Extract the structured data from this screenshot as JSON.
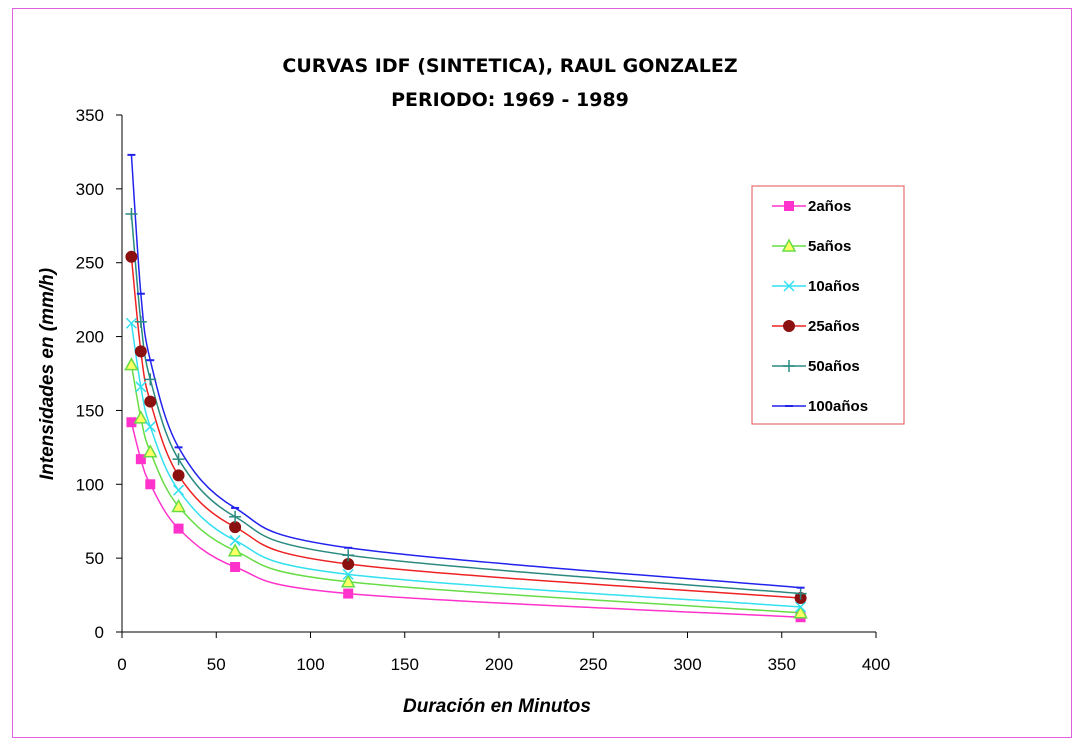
{
  "chart_data": {
    "type": "line",
    "title": "CURVAS IDF (SINTETICA), RAUL GONZALEZ",
    "subtitle": "PERIODO: 1969 - 1989",
    "xlabel": "Duración en Minutos",
    "ylabel": "Intensidades en (mm/h)",
    "xlim": [
      0,
      400
    ],
    "ylim": [
      0,
      350
    ],
    "xticks": [
      0,
      50,
      100,
      150,
      200,
      250,
      300,
      350,
      400
    ],
    "yticks": [
      0,
      50,
      100,
      150,
      200,
      250,
      300,
      350
    ],
    "grid": false,
    "legend_position": "right",
    "x": [
      5,
      10,
      15,
      30,
      60,
      120,
      360
    ],
    "series": [
      {
        "name": "2años",
        "color": "#ff33cc",
        "marker": "square",
        "values": [
          142,
          117,
          100,
          70,
          44,
          26,
          10
        ]
      },
      {
        "name": "5años",
        "color": "#66dd44",
        "marker": "triangle",
        "values": [
          181,
          145,
          122,
          85,
          55,
          34,
          13
        ]
      },
      {
        "name": "10años",
        "color": "#33e0f0",
        "marker": "x",
        "values": [
          209,
          166,
          139,
          96,
          62,
          39,
          17
        ]
      },
      {
        "name": "25años",
        "color": "#ee2222",
        "marker": "circle",
        "values": [
          254,
          190,
          156,
          106,
          71,
          46,
          23
        ]
      },
      {
        "name": "50años",
        "color": "#2a8a80",
        "marker": "plus",
        "values": [
          283,
          210,
          171,
          117,
          78,
          52,
          26
        ]
      },
      {
        "name": "100años",
        "color": "#2222ee",
        "marker": "dash",
        "values": [
          323,
          229,
          184,
          125,
          84,
          57,
          30
        ]
      }
    ]
  }
}
